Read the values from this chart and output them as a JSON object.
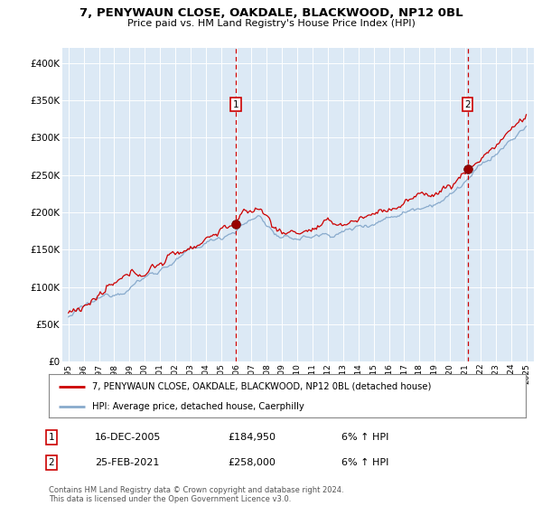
{
  "title1": "7, PENYWAUN CLOSE, OAKDALE, BLACKWOOD, NP12 0BL",
  "title2": "Price paid vs. HM Land Registry's House Price Index (HPI)",
  "legend_line1": "7, PENYWAUN CLOSE, OAKDALE, BLACKWOOD, NP12 0BL (detached house)",
  "legend_line2": "HPI: Average price, detached house, Caerphilly",
  "annotation1_date": "16-DEC-2005",
  "annotation1_price": "£184,950",
  "annotation1_hpi": "6% ↑ HPI",
  "annotation2_date": "25-FEB-2021",
  "annotation2_price": "£258,000",
  "annotation2_hpi": "6% ↑ HPI",
  "footnote": "Contains HM Land Registry data © Crown copyright and database right 2024.\nThis data is licensed under the Open Government Licence v3.0.",
  "bg_color": "#dce9f5",
  "line_color_price": "#cc0000",
  "line_color_hpi": "#88aacc",
  "vline_color": "#cc0000",
  "box_edge_color": "#cc0000",
  "ylim_low": 0,
  "ylim_high": 420000,
  "yticks": [
    0,
    50000,
    100000,
    150000,
    200000,
    250000,
    300000,
    350000,
    400000
  ],
  "sale1_year": 2005.96,
  "sale1_price": 184950,
  "sale2_year": 2021.15,
  "sale2_price": 258000,
  "start_year": 1995,
  "end_year": 2025
}
